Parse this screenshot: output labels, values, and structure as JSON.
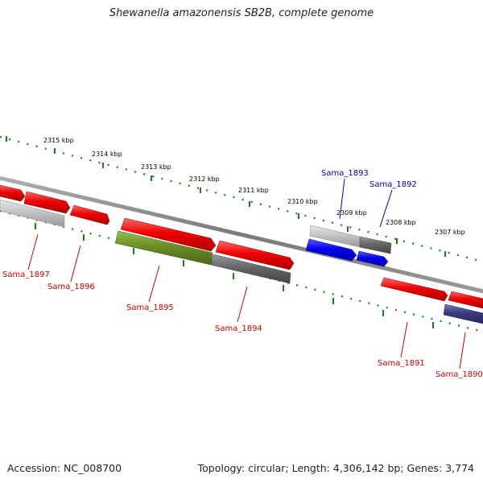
{
  "title": "Shewanella amazonensis SB2B, complete genome",
  "footer": {
    "accession": "Accession: NC_008700",
    "summary": "Topology: circular; Length: 4,306,142 bp; Genes: 3,774"
  },
  "ruler_labels": [
    "2315 kbp",
    "2314 kbp",
    "2313 kbp",
    "2312 kbp",
    "2311 kbp",
    "2310 kbp",
    "2309 kbp",
    "2308 kbp",
    "2307 kbp"
  ],
  "genes": [
    {
      "label": "Sama_1897",
      "color": "#cc0000"
    },
    {
      "label": "Sama_1896",
      "color": "#cc0000"
    },
    {
      "label": "Sama_1895",
      "color": "#cc0000"
    },
    {
      "label": "Sama_1894",
      "color": "#cc0000"
    },
    {
      "label": "Sama_1893",
      "color": "#0000aa"
    },
    {
      "label": "Sama_1892",
      "color": "#0000aa"
    },
    {
      "label": "Sama_1891",
      "color": "#cc0000"
    },
    {
      "label": "Sama_1890",
      "color": "#cc0000"
    }
  ],
  "colors": {
    "ruler": "#1e7a1e",
    "backbone": "#808080",
    "gene_red": "#ee0000",
    "gene_blue": "#0000ee",
    "gene_green": "#6b8e23",
    "gene_gray_light": "#c0c0c0",
    "gene_gray_dark": "#666666",
    "gene_navy": "#3a3a80"
  }
}
